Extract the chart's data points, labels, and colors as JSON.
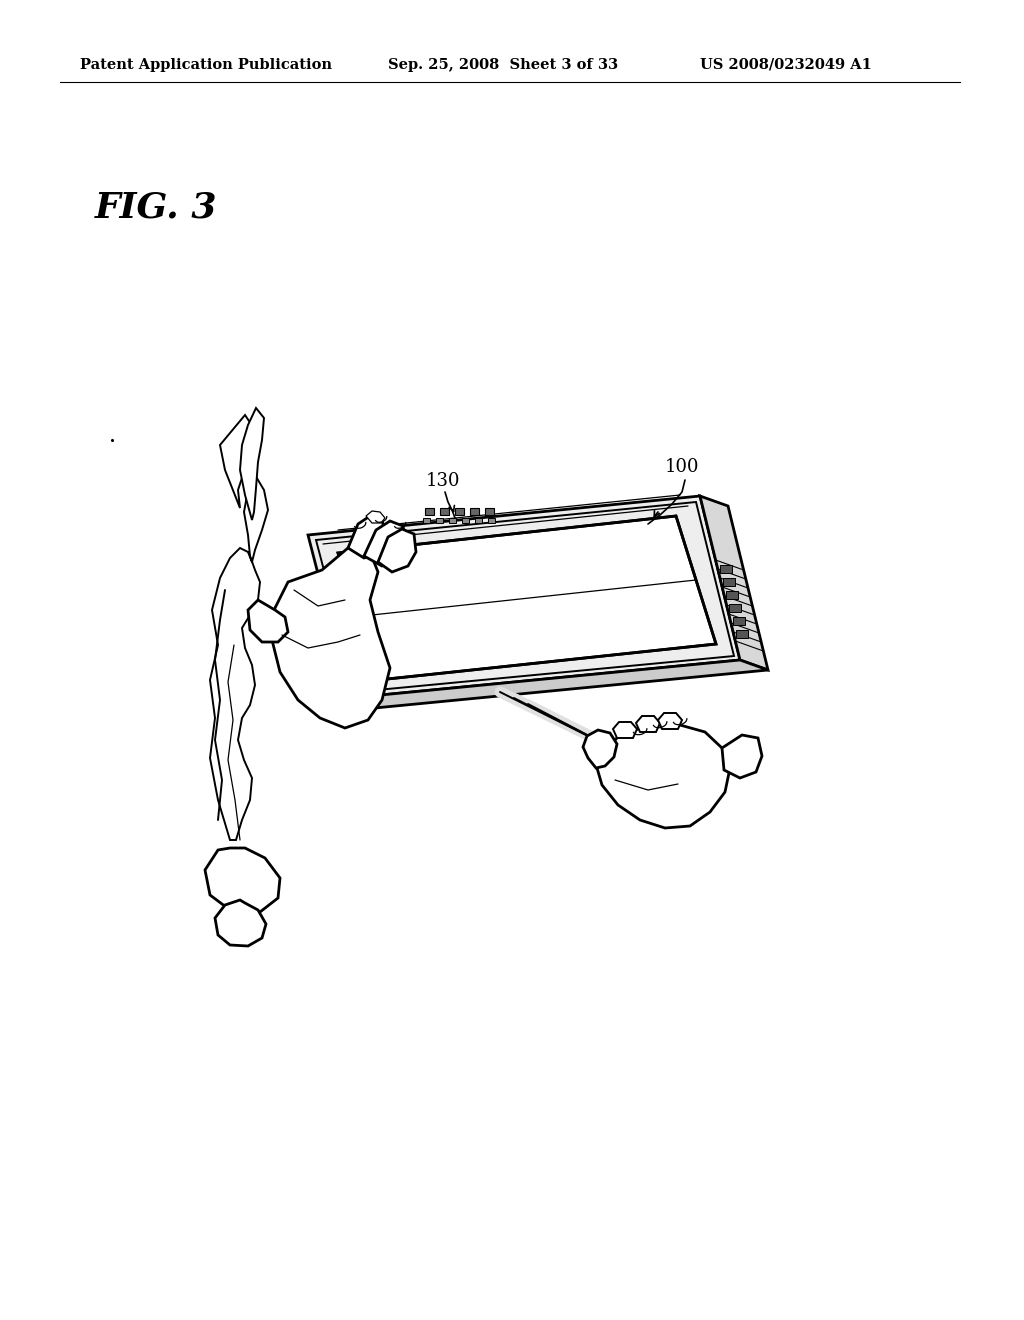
{
  "background_color": "#ffffff",
  "header_left": "Patent Application Publication",
  "header_center": "Sep. 25, 2008  Sheet 3 of 33",
  "header_right": "US 2008/0232049 A1",
  "fig_label": "FIG. 3",
  "label_100": "100",
  "label_130": "130",
  "header_fontsize": 10.5,
  "fig_label_fontsize": 26,
  "annotation_fontsize": 13,
  "line_color": "#000000",
  "lw_main": 2.0,
  "lw_med": 1.4,
  "lw_thin": 0.9
}
